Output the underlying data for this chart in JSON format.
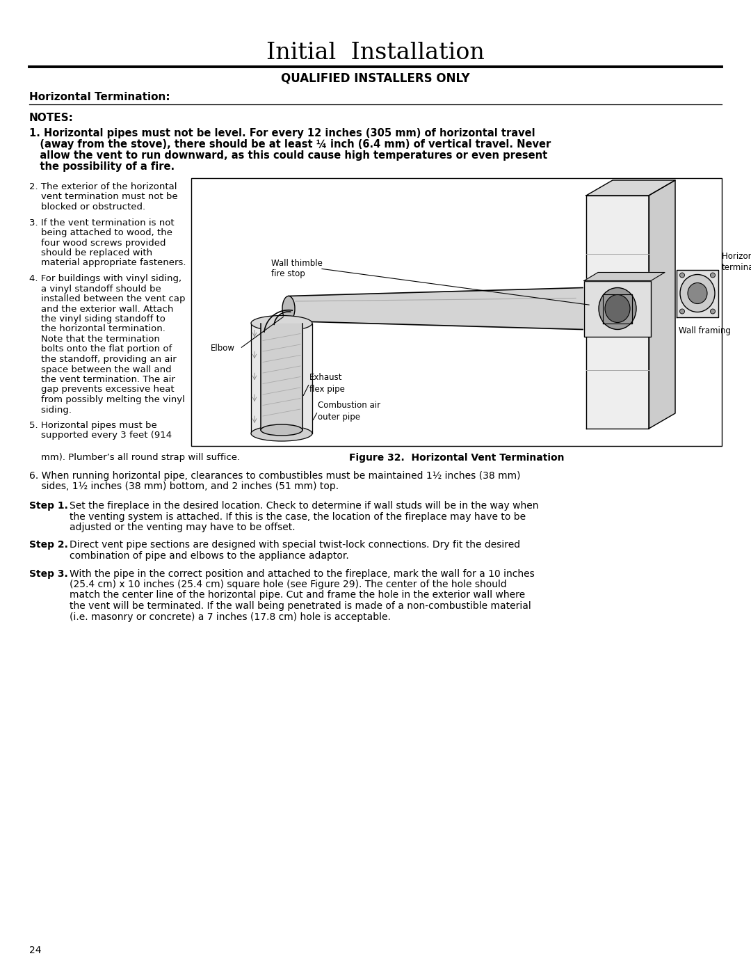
{
  "title": "Initial  Installation",
  "subtitle": "QUALIFIED INSTALLERS ONLY",
  "section_header": "Horizontal Termination:",
  "background_color": "#ffffff",
  "text_color": "#000000",
  "page_number": "24",
  "figure_caption": "Figure 32.  Horizontal Vent Termination",
  "notes_header": "NOTES:",
  "note1_line1": "1. Horizontal pipes must not be level. For every 12 inches (305 mm) of horizontal travel",
  "note1_line2": "   (away from the stove), there should be at least ¼ inch (6.4 mm) of vertical travel. Never",
  "note1_line3": "   allow the vent to run downward, as this could cause high temperatures or even present",
  "note1_line4": "   the possibility of a fire.",
  "note2_lines": [
    "2. The exterior of the horizontal",
    "    vent termination must not be",
    "    blocked or obstructed."
  ],
  "note3_lines": [
    "3. If the vent termination is not",
    "    being attached to wood, the",
    "    four wood screws provided",
    "    should be replaced with",
    "    material appropriate fasteners."
  ],
  "note4_lines": [
    "4. For buildings with vinyl siding,",
    "    a vinyl standoff should be",
    "    installed between the vent cap",
    "    and the exterior wall. Attach",
    "    the vinyl siding standoff to",
    "    the horizontal termination.",
    "    Note that the termination",
    "    bolts onto the flat portion of",
    "    the standoff, providing an air",
    "    space between the wall and",
    "    the vent termination. The air",
    "    gap prevents excessive heat",
    "    from possibly melting the vinyl",
    "    siding."
  ],
  "note5_lines": [
    "5. Horizontal pipes must be",
    "    supported every 3 feet (914"
  ],
  "note5_cont": "    mm). Plumber’s all round strap will suffice.",
  "note6_line1": "6. When running horizontal pipe, clearances to combustibles must be maintained 1½ inches (38 mm)",
  "note6_line2": "    sides, 1½ inches (38 mm) bottom, and 2 inches (51 mm) top.",
  "step1_label": "Step 1.",
  "step1_lines": [
    "Set the fireplace in the desired location. Check to determine if wall studs will be in the way when",
    "the venting system is attached. If this is the case, the location of the fireplace may have to be",
    "adjusted or the venting may have to be offset."
  ],
  "step2_label": "Step 2.",
  "step2_lines": [
    "Direct vent pipe sections are designed with special twist-lock connections. Dry fit the desired",
    "combination of pipe and elbows to the appliance adaptor."
  ],
  "step3_label": "Step 3.",
  "step3_lines": [
    "With the pipe in the correct position and attached to the fireplace, mark the wall for a 10 inches",
    "(25.4 cm) x 10 inches (25.4 cm) square hole (see Figure 29). The center of the hole should",
    "match the center line of the horizontal pipe. Cut and frame the hole in the exterior wall where",
    "the vent will be terminated. If the wall being penetrated is made of a non-combustible material",
    "(i.e. masonry or concrete) a 7 inches (17.8 cm) hole is acceptable."
  ]
}
